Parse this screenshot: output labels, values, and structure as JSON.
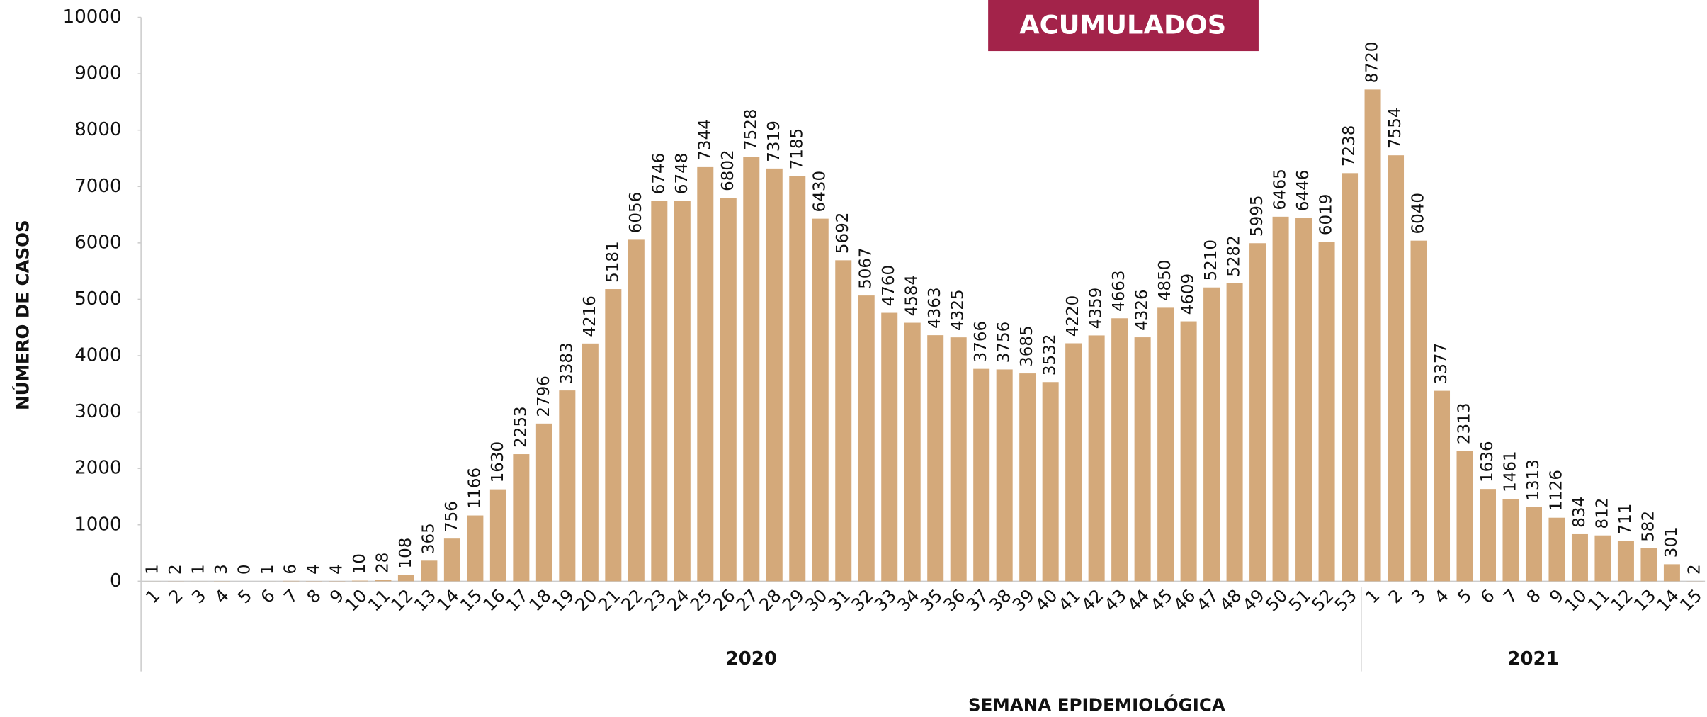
{
  "chart_data": {
    "type": "bar",
    "title": "ACUMULADOS",
    "x_label": "SEMANA EPIDEMIOLÓGICA",
    "y_label": "NÚMERO DE CASOS",
    "color": "#d4a97a",
    "groups": [
      {
        "name": "2020",
        "categories": [
          "1",
          "2",
          "3",
          "4",
          "5",
          "6",
          "7",
          "8",
          "9",
          "10",
          "11",
          "12",
          "13",
          "14",
          "15",
          "16",
          "17",
          "18",
          "19",
          "20",
          "21",
          "22",
          "23",
          "24",
          "25",
          "26",
          "27",
          "28",
          "29",
          "30",
          "31",
          "32",
          "33",
          "34",
          "35",
          "36",
          "37",
          "38",
          "39",
          "40",
          "41",
          "42",
          "43",
          "44",
          "45",
          "46",
          "47",
          "48",
          "49",
          "50",
          "51",
          "52",
          "53"
        ],
        "values": [
          1,
          2,
          1,
          3,
          0,
          1,
          6,
          4,
          4,
          10,
          28,
          108,
          365,
          756,
          1166,
          1630,
          2253,
          2796,
          3383,
          4216,
          5181,
          6056,
          6746,
          6748,
          7344,
          6802,
          7528,
          7319,
          7185,
          6430,
          5692,
          5067,
          4760,
          4584,
          4363,
          4325,
          3766,
          3756,
          3685,
          3532,
          4220,
          4359,
          4663,
          4326,
          4850,
          4609,
          5210,
          5282,
          5995,
          6465,
          6446,
          6019,
          7238
        ]
      },
      {
        "name": "2021",
        "categories": [
          "1",
          "2",
          "3",
          "4",
          "5",
          "6",
          "7",
          "8",
          "9",
          "10",
          "11",
          "12",
          "13",
          "14",
          "15"
        ],
        "values": [
          8720,
          7554,
          6040,
          3377,
          2313,
          1636,
          1461,
          1313,
          1126,
          834,
          812,
          711,
          582,
          301,
          2
        ]
      }
    ],
    "ylim": [
      0,
      10000
    ],
    "yticks": [
      0,
      1000,
      2000,
      3000,
      4000,
      5000,
      6000,
      7000,
      8000,
      9000,
      10000
    ]
  }
}
